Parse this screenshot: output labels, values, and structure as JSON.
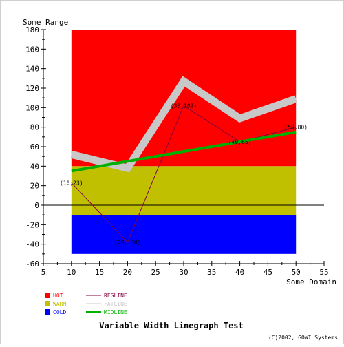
{
  "chart_data": {
    "type": "line",
    "title": "Variable Width Linegraph Test",
    "xlabel": "Some Domain",
    "ylabel": "Some Range",
    "copyright": "(C)2002, GOWI Systems",
    "xlim": [
      5,
      55
    ],
    "ylim": [
      -60,
      180
    ],
    "x_ticks": [
      5,
      10,
      15,
      20,
      25,
      30,
      35,
      40,
      45,
      50,
      55
    ],
    "y_ticks": [
      -60,
      -40,
      -20,
      0,
      20,
      40,
      60,
      80,
      100,
      120,
      140,
      160,
      180
    ],
    "grid": false,
    "zero_line": true,
    "bands": [
      {
        "name": "HOT",
        "from": 40,
        "to": 180,
        "x_range": [
          10,
          50
        ],
        "color": "#ff0000"
      },
      {
        "name": "WARM",
        "from": -10,
        "to": 40,
        "x_range": [
          10,
          50
        ],
        "color": "#c0c000"
      },
      {
        "name": "COLD",
        "from": -50,
        "to": -10,
        "x_range": [
          10,
          50
        ],
        "color": "#0000ff"
      }
    ],
    "series": [
      {
        "name": "FATLINE",
        "color": "#c8c8c8",
        "x": [
          10,
          20,
          30,
          40,
          50
        ],
        "values": [
          52,
          38,
          127,
          89,
          109
        ]
      },
      {
        "name": "REGLINE",
        "color": "#800040",
        "x": [
          10,
          20,
          30,
          40,
          50
        ],
        "values": [
          23,
          -38,
          102,
          65,
          80
        ],
        "point_labels": [
          "(10,23)",
          "(20,-38)",
          "(30,102)",
          "(40,65)",
          "(50,80)"
        ]
      },
      {
        "name": "MIDLINE",
        "color": "#00b000",
        "x": [
          10,
          50
        ],
        "values": [
          35,
          75
        ]
      }
    ],
    "legend": {
      "placement": "bottom-left",
      "items": [
        {
          "label": "HOT",
          "kind": "box",
          "color": "#ff0000",
          "text_color": "#ff0000"
        },
        {
          "label": "WARM",
          "kind": "box",
          "color": "#c0c000",
          "text_color": "#c0c000"
        },
        {
          "label": "COLD",
          "kind": "box",
          "color": "#0000ff",
          "text_color": "#0000ff"
        },
        {
          "label": "REGLINE",
          "kind": "line",
          "color": "#800040",
          "text_color": "#800040"
        },
        {
          "label": "FATLINE",
          "kind": "line",
          "color": "#c8c8c8",
          "text_color": "#c8c8c8"
        },
        {
          "label": "MIDLINE",
          "kind": "line",
          "color": "#00b000",
          "text_color": "#00b000"
        }
      ]
    }
  }
}
